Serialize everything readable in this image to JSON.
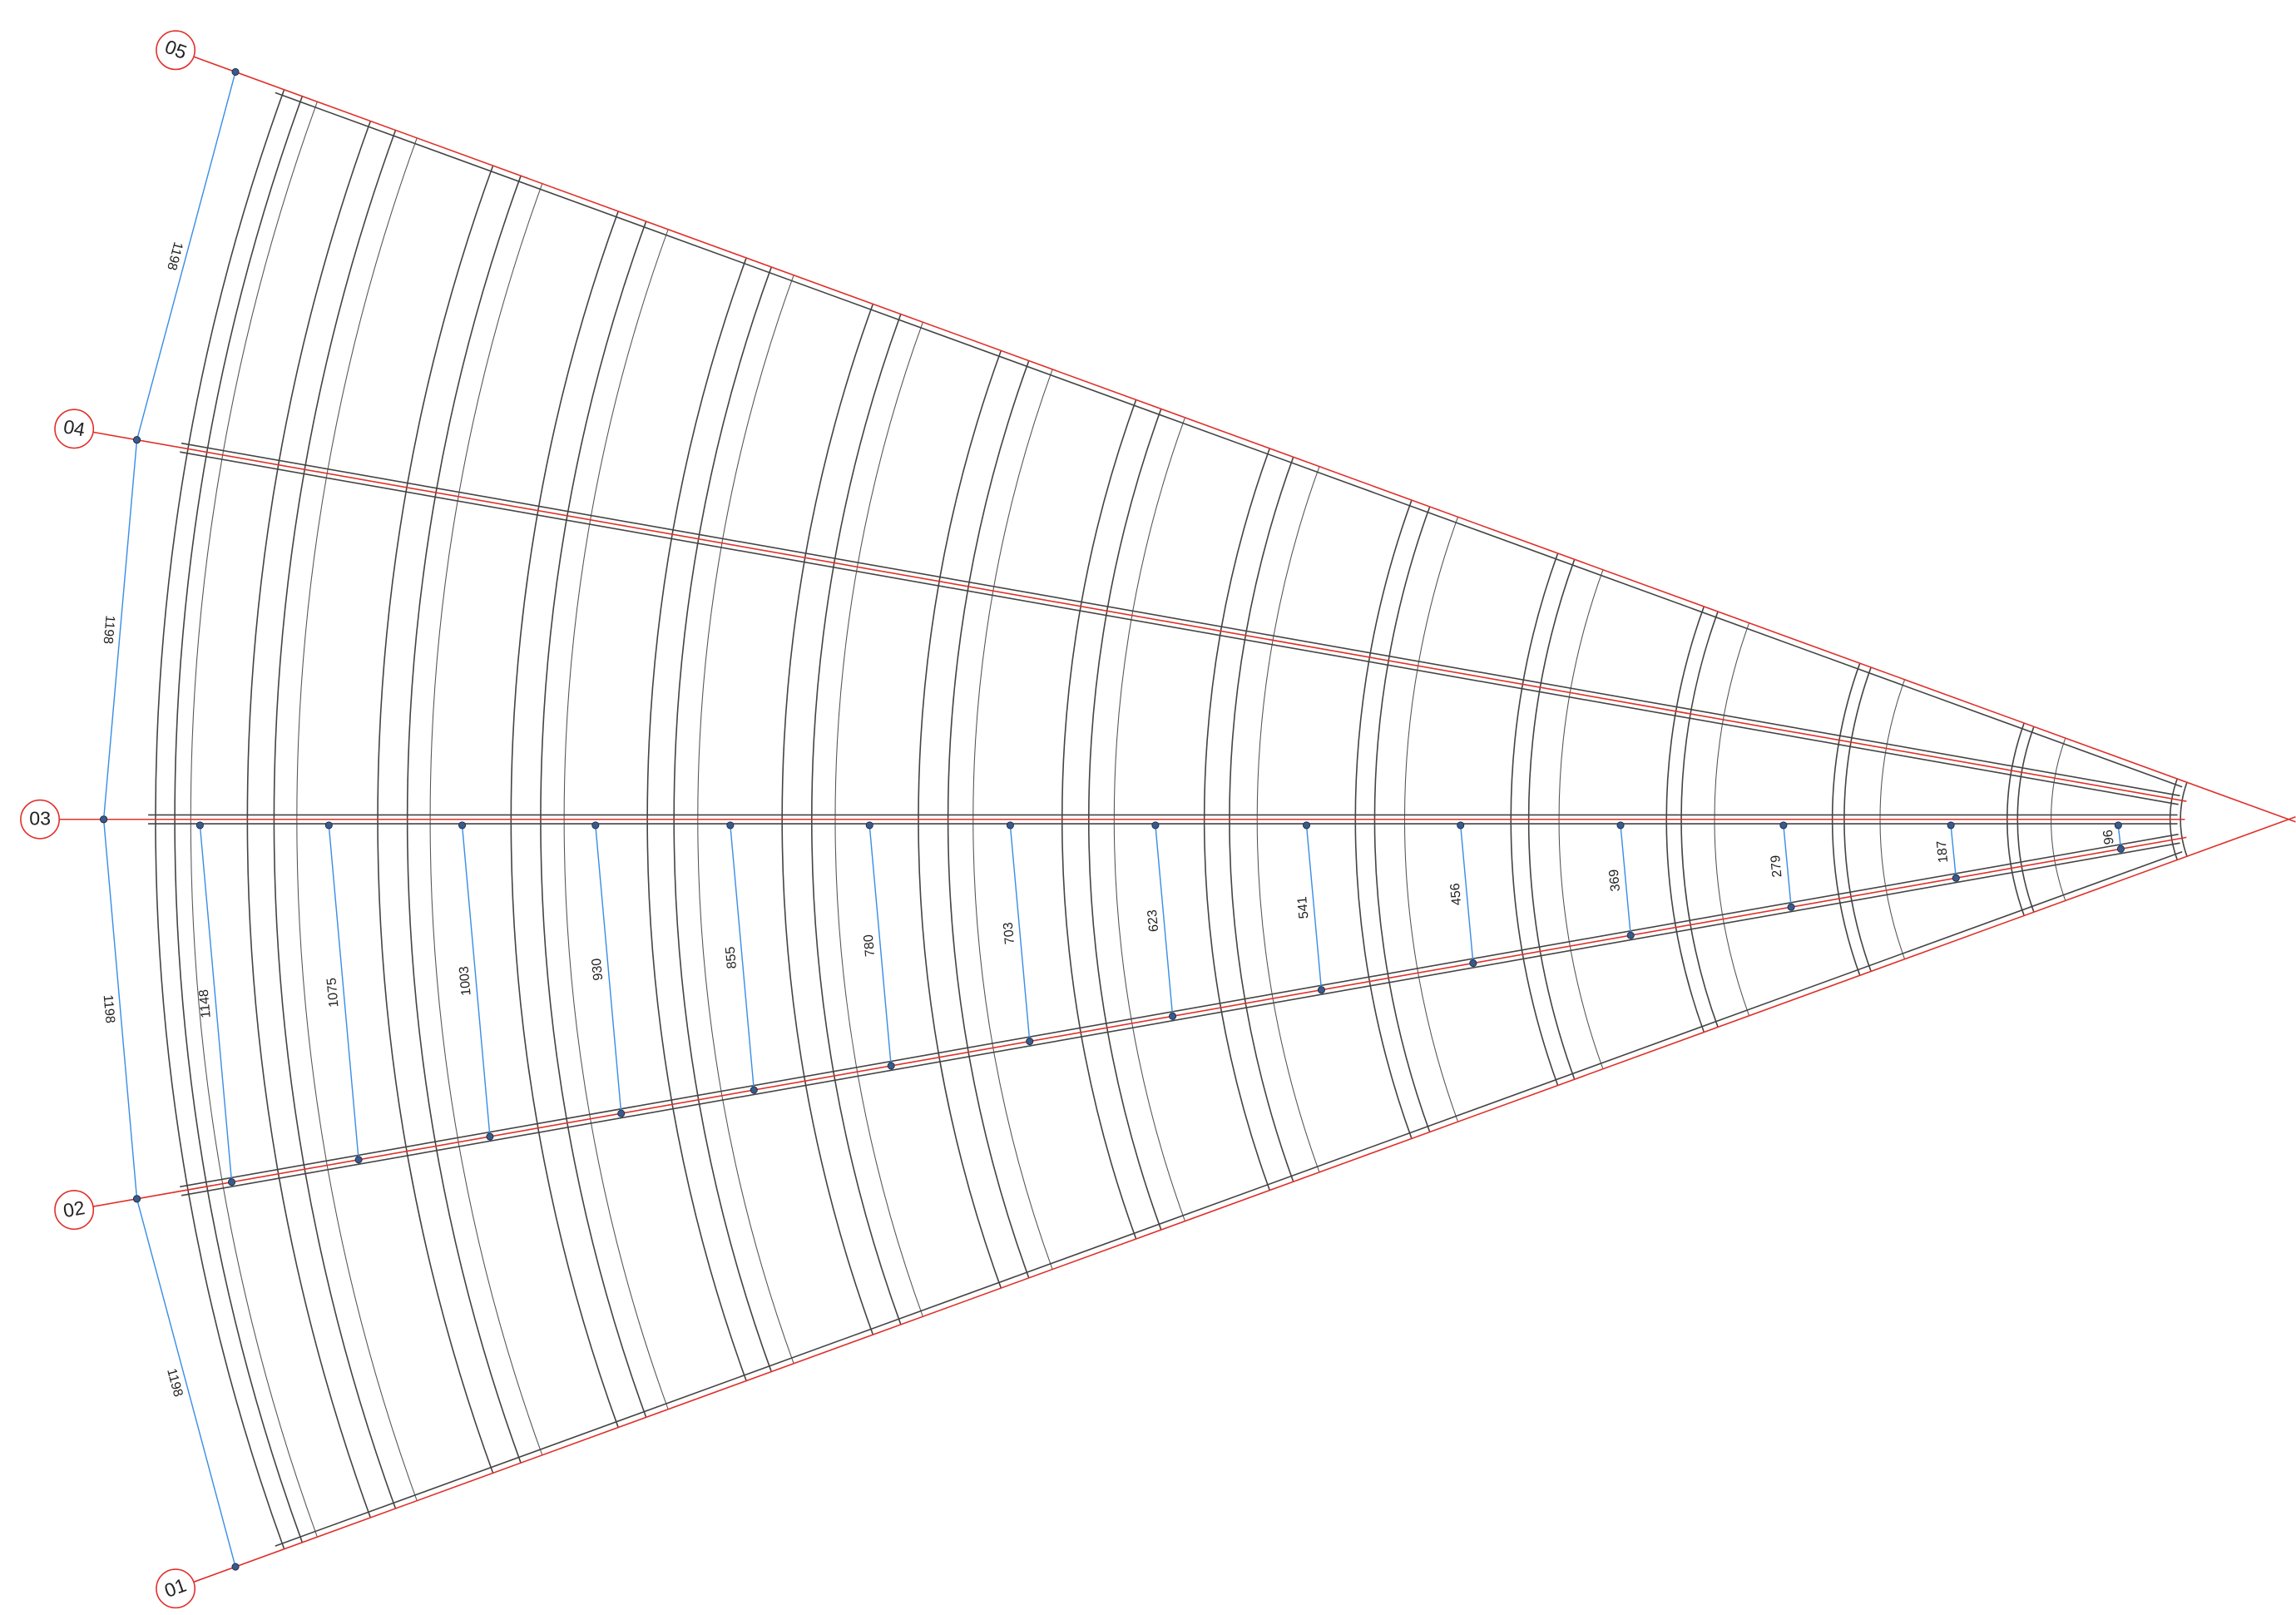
{
  "grid_labels": [
    "01",
    "02",
    "03",
    "04",
    "05"
  ],
  "bay_dimensions": [
    1198,
    1198,
    1198,
    1198
  ],
  "rafter_spacings": [
    1148,
    1075,
    1003,
    930,
    855,
    780,
    703,
    623,
    541,
    456,
    369,
    279,
    187,
    96
  ]
}
